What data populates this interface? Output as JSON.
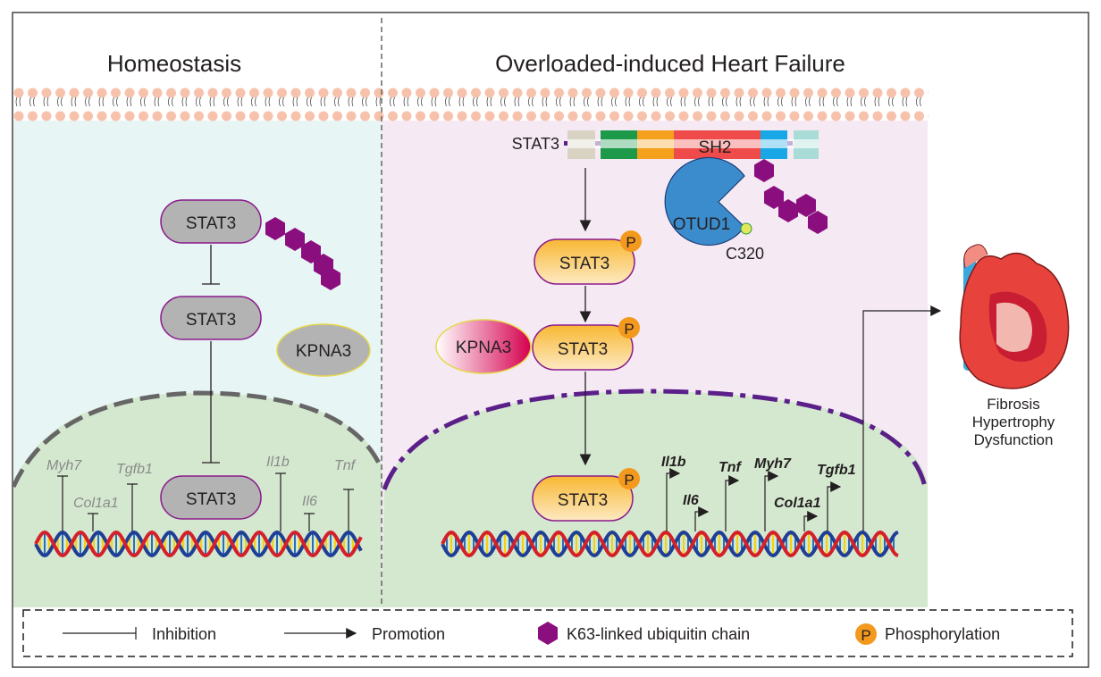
{
  "panels": {
    "left_title": "Homeostasis",
    "right_title": "Overloaded-induced  Heart Failure"
  },
  "left": {
    "stat3_top": "STAT3",
    "stat3_mid": "STAT3",
    "stat3_nuc": "STAT3",
    "kpna3": "KPNA3",
    "genes": [
      "Myh7",
      "Col1a1",
      "Tgfb1",
      "Il1b",
      "Il6",
      "Tnf"
    ]
  },
  "right": {
    "stat3_domain_label": "STAT3",
    "sh2": "SH2",
    "otud1": "OTUD1",
    "c320": "C320",
    "stat3_p1": "STAT3",
    "stat3_p2": "STAT3",
    "stat3_nuc": "STAT3",
    "kpna3": "KPNA3",
    "phospho": "P",
    "genes": [
      "Il1b",
      "Il6",
      "Tnf",
      "Myh7",
      "Col1a1",
      "Tgfb1"
    ],
    "outcomes": [
      "Fibrosis",
      "Hypertrophy",
      "Dysfunction"
    ]
  },
  "legend": {
    "inhibition": "Inhibition",
    "promotion": "Promotion",
    "ubiquitin": "K63-linked ubiquitin chain",
    "phosphorylation": "Phosphorylation",
    "p": "P"
  },
  "colors": {
    "left_bg": "#e8f5f5",
    "right_bg": "#f5eaf4",
    "nucleus": "#d4e8cf",
    "ubiquitin": "#8b0e7e",
    "phospho": "#f39a1e",
    "otud1": "#3b8ccc"
  }
}
